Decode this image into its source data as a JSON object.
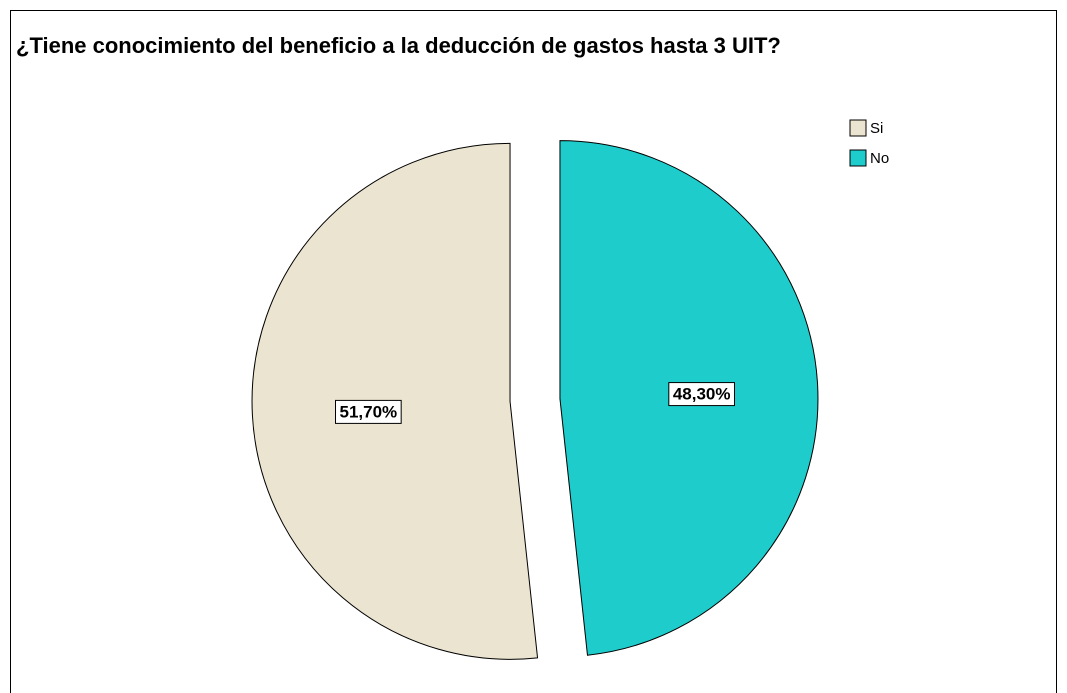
{
  "chart_data": {
    "type": "pie",
    "title": "¿Tiene conocimiento del beneficio a la deducción de gastos hasta 3 UIT?",
    "categories": [
      "Si",
      "No"
    ],
    "values": [
      51.7,
      48.3
    ],
    "value_labels": [
      "51,70%",
      "48,30%"
    ],
    "colors": [
      "#ebe4d0",
      "#1fcccc"
    ],
    "legend": "top-right"
  }
}
